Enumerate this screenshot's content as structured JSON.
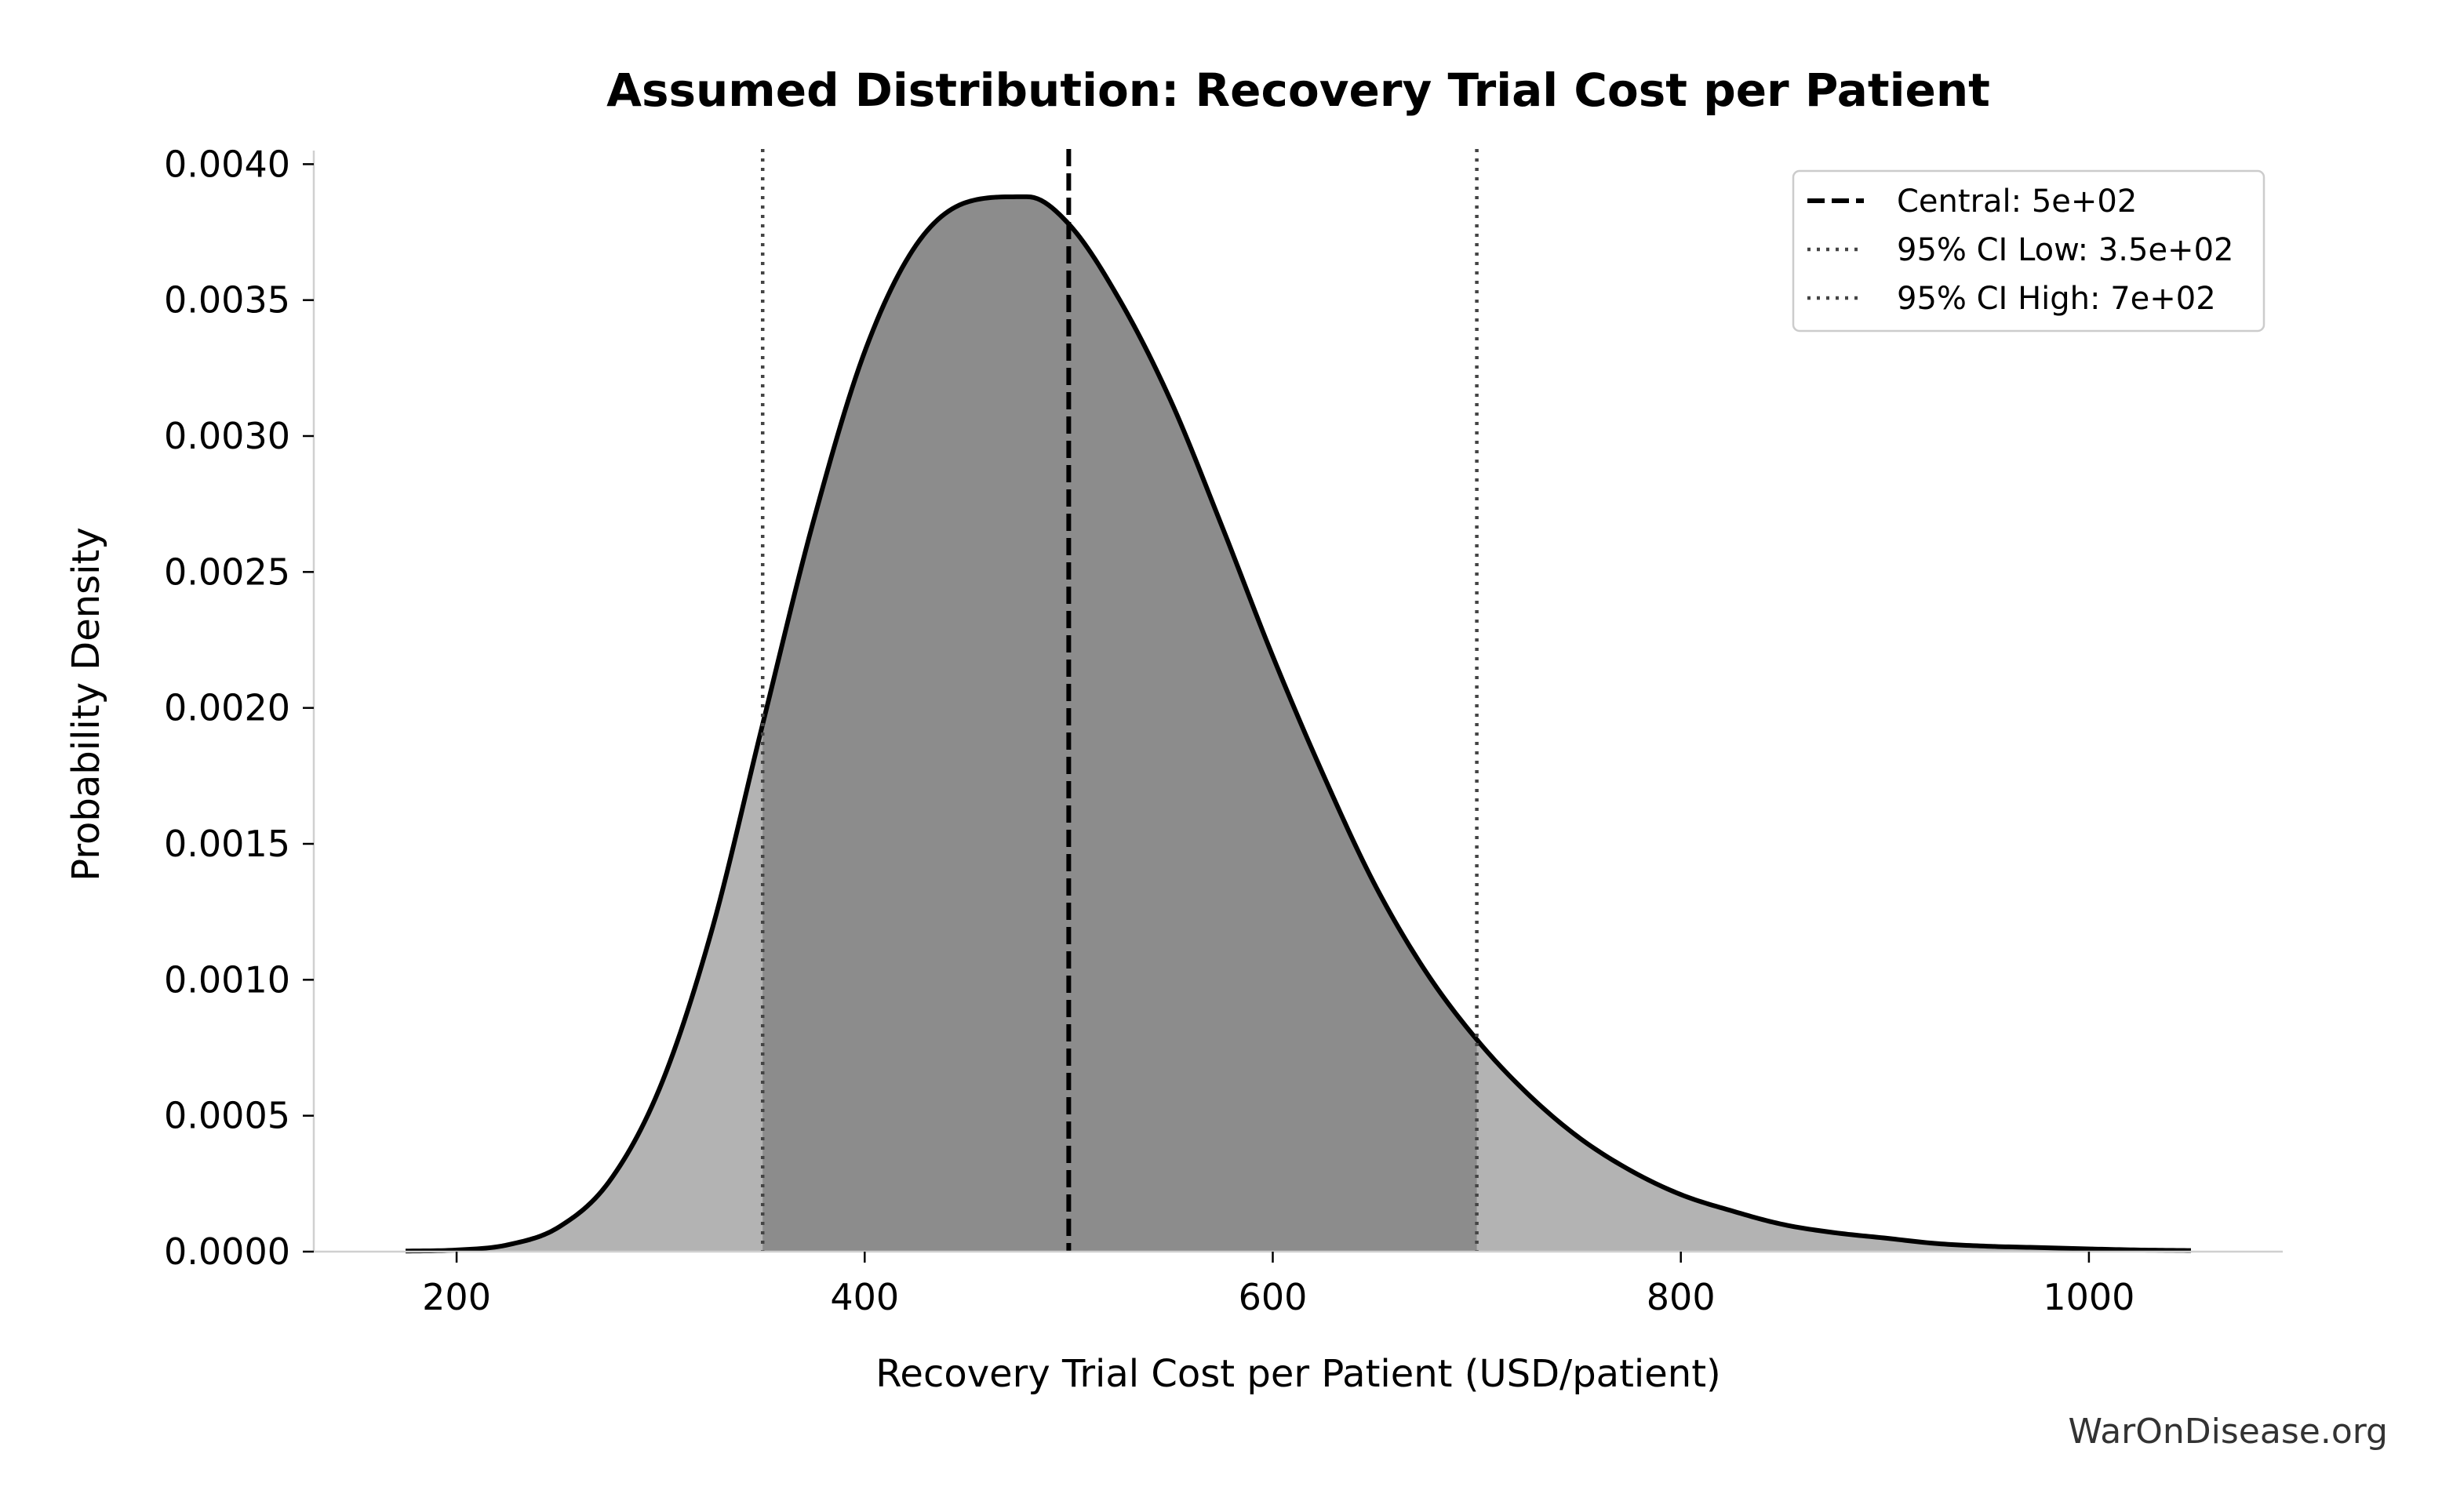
{
  "chart_data": {
    "type": "area",
    "title": "Assumed Distribution: Recovery Trial Cost per Patient",
    "xlabel": "Recovery Trial Cost per Patient (USD/patient)",
    "ylabel": "Probability Density",
    "xlim": [
      130,
      1095
    ],
    "ylim": [
      0,
      0.00405
    ],
    "xticks": [
      200,
      400,
      600,
      800,
      1000
    ],
    "xtick_labels": [
      "200",
      "400",
      "600",
      "800",
      "1000"
    ],
    "yticks": [
      0,
      0.0005,
      0.001,
      0.0015,
      0.002,
      0.0025,
      0.003,
      0.0035,
      0.004
    ],
    "ytick_labels": [
      "0.0000",
      "0.0005",
      "0.0010",
      "0.0015",
      "0.0020",
      "0.0025",
      "0.0030",
      "0.0035",
      "0.0040"
    ],
    "series": [
      {
        "x": [
          175,
          200,
          225,
          250,
          275,
          300,
          325,
          350,
          375,
          400,
          425,
          450,
          475,
          480,
          500,
          525,
          550,
          575,
          600,
          625,
          650,
          675,
          700,
          725,
          750,
          775,
          800,
          825,
          850,
          875,
          900,
          925,
          950,
          975,
          1000,
          1025,
          1050
        ],
        "y": [
          2e-06,
          6e-06,
          2.5e-05,
          9e-05,
          0.00026,
          0.00061,
          0.00118,
          0.00194,
          0.00269,
          0.00331,
          0.0037,
          0.00386,
          0.00388,
          0.00388,
          0.00378,
          0.0035,
          0.00313,
          0.00267,
          0.00219,
          0.00175,
          0.00135,
          0.00103,
          0.00078,
          0.00058,
          0.00042,
          0.0003,
          0.00021,
          0.00015,
          0.0001,
          7e-05,
          5e-05,
          3e-05,
          2e-05,
          1.5e-05,
          1e-05,
          6e-06,
          4e-06
        ]
      }
    ],
    "shaded_interval": [
      350,
      700
    ],
    "reference_lines": [
      {
        "label": "Central: 5e+02",
        "x": 500,
        "style": "dashed"
      },
      {
        "label": "95% CI Low: 3.5e+02",
        "x": 350,
        "style": "dotted"
      },
      {
        "label": "95% CI High: 7e+02",
        "x": 700,
        "style": "dotted"
      }
    ],
    "legend_position": "top-right",
    "grid": false,
    "colors": {
      "curve": "#000000",
      "shade_inner": "#8c8c8c",
      "shade_outer": "#b3b3b3",
      "central_line": "#000000",
      "ci_line": "#444444",
      "spine": "#d0d0d0"
    }
  },
  "watermark": "WarOnDisease.org"
}
